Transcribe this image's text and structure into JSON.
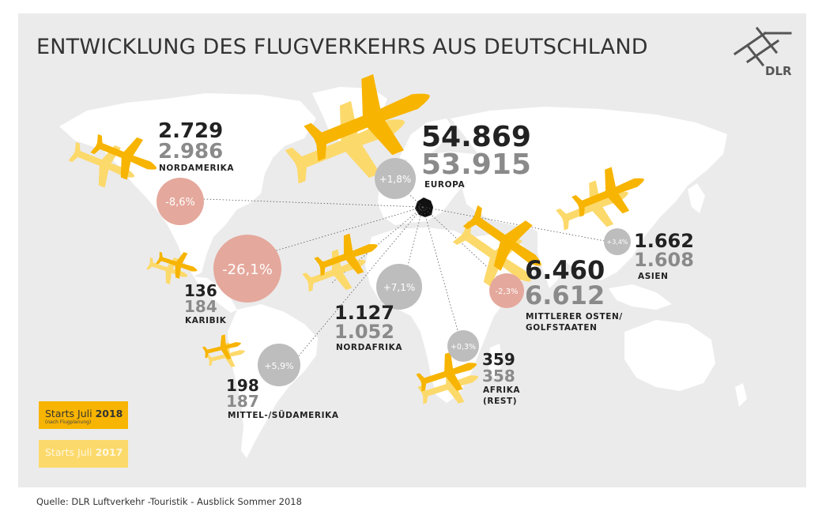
{
  "title": "ENTWICKLUNG DES FLUGVERKEHRS AUS DEUTSCHLAND",
  "logo_text": "DLR",
  "source": "Quelle: DLR Luftverkehr -Touristik - Ausblick Sommer 2018",
  "legend": {
    "current_prefix": "Starts Juli ",
    "current_year": "2018",
    "current_note": "(nach Flugplanung)",
    "previous_prefix": "Starts Juli ",
    "previous_year": "2017"
  },
  "colors": {
    "plane_2018": "#f7b400",
    "plane_2017": "#fcd96b",
    "circle_negative": "#e5a89c",
    "circle_positive": "#bdbdbd",
    "value_2018": "#222222",
    "value_2017": "#8a8a8a",
    "land": "#ffffff",
    "background": "#ebebeb"
  },
  "regions": {
    "nordamerika": {
      "label": "NORDAMERIKA",
      "v2018": "2.729",
      "v2017": "2.986",
      "change": "-8,6%"
    },
    "europa": {
      "label": "EUROPA",
      "v2018": "54.869",
      "v2017": "53.915",
      "change": "+1,8%"
    },
    "asien": {
      "label": "ASIEN",
      "v2018": "1.662",
      "v2017": "1.608",
      "change": "+3,4%"
    },
    "karibik": {
      "label": "KARIBIK",
      "v2018": "136",
      "v2017": "184",
      "change": "-26,1%"
    },
    "mittlerer_osten": {
      "label_line1": "MITTLERER OSTEN/",
      "label_line2": "GOLFSTAATEN",
      "v2018": "6.460",
      "v2017": "6.612",
      "change": "-2,3%"
    },
    "nordafrika": {
      "label": "NORDAFRIKA",
      "v2018": "1.127",
      "v2017": "1.052",
      "change": "+7,1%"
    },
    "afrika_rest": {
      "label_line1": "AFRIKA",
      "label_line2": "(REST)",
      "v2018": "359",
      "v2017": "358",
      "change": "+0,3%"
    },
    "mittel_suedamerika": {
      "label": "MITTEL-/SÜDAMERIKA",
      "v2018": "198",
      "v2017": "187",
      "change": "+5,9%"
    }
  }
}
